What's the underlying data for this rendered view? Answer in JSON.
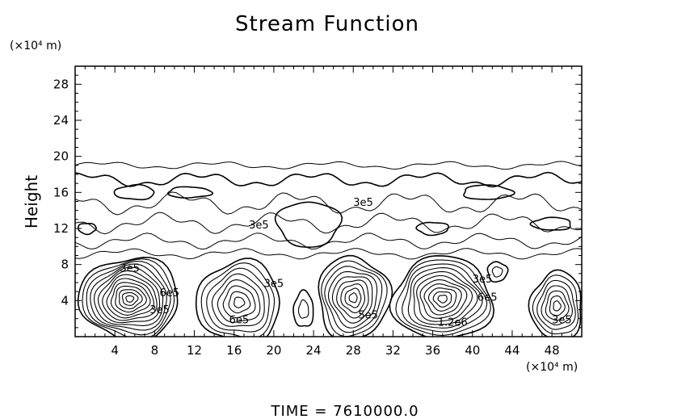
{
  "chart_data": {
    "type": "contour",
    "title": "Stream Function",
    "ylabel": "Height",
    "x_unit_label": "(×10⁴ m)",
    "y_unit_label": "(×10⁴ m)",
    "xlim": [
      0,
      51
    ],
    "ylim": [
      0,
      30
    ],
    "x_ticks": [
      4,
      8,
      12,
      16,
      20,
      24,
      28,
      32,
      36,
      40,
      44,
      48
    ],
    "y_ticks": [
      4,
      8,
      12,
      16,
      20,
      24,
      28
    ],
    "footer": "TIME  =  7610000.0",
    "line_color": "#000000",
    "cells": [
      {
        "name": "cell-1",
        "cx": 5.5,
        "cy": 4.2,
        "rx": 5.0,
        "ry": 4.6,
        "rings": 13
      },
      {
        "name": "cell-2",
        "cx": 16.5,
        "cy": 3.8,
        "rx": 4.2,
        "ry": 4.6,
        "rings": 8
      },
      {
        "name": "cell-3",
        "cx": 23.0,
        "cy": 3.0,
        "rx": 1.0,
        "ry": 2.0,
        "rings": 2
      },
      {
        "name": "cell-4",
        "cx": 28.0,
        "cy": 4.3,
        "rx": 3.6,
        "ry": 4.6,
        "rings": 9
      },
      {
        "name": "cell-5",
        "cx": 37.0,
        "cy": 4.2,
        "rx": 5.0,
        "ry": 4.6,
        "rings": 11
      },
      {
        "name": "cell-6",
        "cx": 42.5,
        "cy": 7.2,
        "rx": 1.0,
        "ry": 1.1,
        "rings": 2
      },
      {
        "name": "cell-7",
        "cx": 48.5,
        "cy": 3.4,
        "rx": 2.6,
        "ry": 3.8,
        "rings": 7
      }
    ],
    "bands": [
      {
        "name": "band-19",
        "y": 19.0,
        "x0": 0,
        "x1": 51,
        "amp": 0.3
      },
      {
        "name": "band-17",
        "y": 17.4,
        "x0": 0,
        "x1": 51,
        "amp": 0.6
      },
      {
        "name": "band-15",
        "y": 14.8,
        "x0": 0,
        "x1": 51,
        "amp": 0.9
      },
      {
        "name": "band-13",
        "y": 12.6,
        "x0": 0,
        "x1": 51,
        "amp": 0.8
      },
      {
        "name": "band-11",
        "y": 10.6,
        "x0": 0,
        "x1": 51,
        "amp": 0.6
      },
      {
        "name": "band-9",
        "y": 9.2,
        "x0": 0,
        "x1": 51,
        "amp": 0.4
      }
    ],
    "blobs": [
      {
        "name": "blob-a",
        "cx": 23.5,
        "cy": 12.5,
        "rx": 3.2,
        "ry": 2.5
      },
      {
        "name": "blob-b",
        "cx": 11.5,
        "cy": 16.0,
        "rx": 2.2,
        "ry": 0.6
      },
      {
        "name": "blob-c",
        "cx": 6.0,
        "cy": 16.0,
        "rx": 2.0,
        "ry": 0.8
      },
      {
        "name": "blob-d",
        "cx": 36.0,
        "cy": 12.0,
        "rx": 1.6,
        "ry": 0.7
      },
      {
        "name": "blob-e",
        "cx": 41.5,
        "cy": 16.0,
        "rx": 2.5,
        "ry": 0.8
      },
      {
        "name": "blob-f",
        "cx": 48.0,
        "cy": 12.5,
        "rx": 2.0,
        "ry": 0.7
      },
      {
        "name": "blob-g",
        "cx": 1.2,
        "cy": 12.0,
        "rx": 0.9,
        "ry": 0.6
      }
    ],
    "contour_labels": [
      {
        "text": "3e5",
        "x": 18.5,
        "y": 12.0
      },
      {
        "text": "3e5",
        "x": 29.0,
        "y": 14.5
      },
      {
        "text": "3e5",
        "x": 5.5,
        "y": 7.2
      },
      {
        "text": "6e5",
        "x": 9.5,
        "y": 4.5
      },
      {
        "text": "3e5",
        "x": 8.5,
        "y": 2.6
      },
      {
        "text": "3e5",
        "x": 20.0,
        "y": 5.5
      },
      {
        "text": "6e5",
        "x": 16.5,
        "y": 1.5
      },
      {
        "text": "5e5",
        "x": 29.5,
        "y": 2.0
      },
      {
        "text": "1.2e6",
        "x": 38.0,
        "y": 1.2
      },
      {
        "text": "3e5",
        "x": 41.0,
        "y": 6.0
      },
      {
        "text": "6e5",
        "x": 41.5,
        "y": 4.0
      },
      {
        "text": "3e5",
        "x": 49.0,
        "y": 1.5
      }
    ]
  }
}
